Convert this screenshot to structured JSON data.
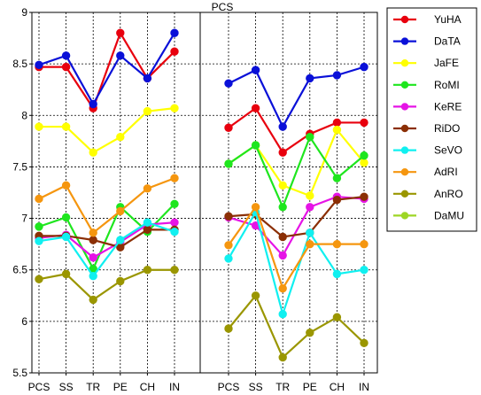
{
  "chart_data": {
    "type": "line",
    "title": "PCS",
    "xlabel": "",
    "ylabel": "",
    "ylim": [
      5.5,
      9
    ],
    "yticks": [
      "5.5",
      "6",
      "6.5",
      "7",
      "7.5",
      "8",
      "8.5",
      "9"
    ],
    "grid": true,
    "legend_position": "right",
    "panels": [
      {
        "categories": [
          "PCS",
          "SS",
          "TR",
          "PE",
          "CH",
          "IN"
        ]
      },
      {
        "categories": [
          "PCS",
          "SS",
          "TR",
          "PE",
          "CH",
          "IN"
        ]
      }
    ],
    "series": [
      {
        "name": "YuHA",
        "color": "#e8000e",
        "panel_values": [
          [
            8.47,
            8.47,
            8.07,
            8.8,
            8.36,
            8.62
          ],
          [
            7.88,
            8.07,
            7.64,
            7.82,
            7.93,
            7.93
          ]
        ]
      },
      {
        "name": "DaTA",
        "color": "#0a10d8",
        "panel_values": [
          [
            8.49,
            8.58,
            8.11,
            8.58,
            8.36,
            8.8
          ],
          [
            8.31,
            8.44,
            7.89,
            8.36,
            8.39,
            8.47
          ]
        ]
      },
      {
        "name": "JaFE",
        "color": "#ffff00",
        "panel_values": [
          [
            7.89,
            7.89,
            7.64,
            7.79,
            8.04,
            8.07
          ],
          [
            7.53,
            7.71,
            7.32,
            7.22,
            7.86,
            7.54
          ]
        ]
      },
      {
        "name": "RoMI",
        "color": "#1ee61e",
        "panel_values": [
          [
            6.92,
            7.01,
            6.51,
            7.11,
            6.87,
            7.14
          ],
          [
            7.53,
            7.71,
            7.11,
            7.79,
            7.39,
            7.61
          ]
        ]
      },
      {
        "name": "KeRE",
        "color": "#e614e6",
        "panel_values": [
          [
            6.81,
            6.84,
            6.62,
            6.77,
            6.94,
            6.96
          ],
          [
            7.01,
            6.93,
            6.64,
            7.11,
            7.21,
            7.19
          ]
        ]
      },
      {
        "name": "RiDO",
        "color": "#8b2f05",
        "panel_values": [
          [
            6.83,
            6.83,
            6.79,
            6.72,
            6.89,
            6.89
          ],
          [
            7.02,
            7.04,
            6.82,
            6.86,
            7.18,
            7.21
          ]
        ]
      },
      {
        "name": "SeVO",
        "color": "#10f0f0",
        "panel_values": [
          [
            6.78,
            6.82,
            6.44,
            6.79,
            6.96,
            6.87
          ],
          [
            6.61,
            7.06,
            6.07,
            6.86,
            6.46,
            6.5
          ]
        ]
      },
      {
        "name": "AdRI",
        "color": "#f5960f",
        "panel_values": [
          [
            7.19,
            7.32,
            6.86,
            7.07,
            7.29,
            7.39
          ],
          [
            6.74,
            7.11,
            6.32,
            6.75,
            6.75,
            6.75
          ]
        ]
      },
      {
        "name": "AnRO",
        "color": "#9a9600",
        "panel_values": [
          [
            6.41,
            6.46,
            6.21,
            6.39,
            6.5,
            6.5
          ],
          [
            5.93,
            6.25,
            5.65,
            5.89,
            6.04,
            5.79
          ]
        ]
      },
      {
        "name": "DaMU",
        "color": "#9dd625",
        "panel_values": [
          [],
          []
        ]
      }
    ]
  }
}
